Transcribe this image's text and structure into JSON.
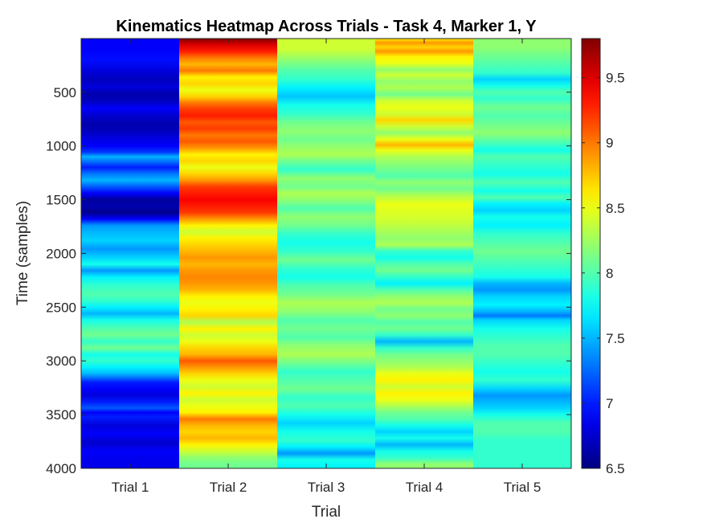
{
  "chart_data": {
    "type": "heatmap",
    "title": "Kinematics Heatmap Across Trials - Task 4, Marker 1, Y",
    "xlabel": "Trial",
    "ylabel": "Time (samples)",
    "categories": [
      "Trial 1",
      "Trial 2",
      "Trial 3",
      "Trial 4",
      "Trial 5"
    ],
    "ylim": [
      1,
      4000
    ],
    "y_reversed": true,
    "yticks": [
      500,
      1000,
      1500,
      2000,
      2500,
      3000,
      3500,
      4000
    ],
    "colorbar": {
      "colormap": "jet",
      "clim": [
        6.5,
        9.8
      ],
      "ticks": [
        6.5,
        7,
        7.5,
        8,
        8.5,
        9,
        9.5
      ]
    },
    "grid": false,
    "series": [
      {
        "values": [
          [
            0,
            6.9
          ],
          [
            100,
            6.9
          ],
          [
            200,
            6.95
          ],
          [
            300,
            6.8
          ],
          [
            380,
            6.7
          ],
          [
            450,
            6.8
          ],
          [
            520,
            6.65
          ],
          [
            580,
            6.7
          ],
          [
            650,
            6.9
          ],
          [
            720,
            6.75
          ],
          [
            800,
            6.65
          ],
          [
            860,
            6.7
          ],
          [
            920,
            6.8
          ],
          [
            1000,
            6.9
          ],
          [
            1060,
            7.1
          ],
          [
            1100,
            7.5
          ],
          [
            1140,
            7.3
          ],
          [
            1200,
            7.0
          ],
          [
            1260,
            7.3
          ],
          [
            1320,
            7.5
          ],
          [
            1380,
            7.2
          ],
          [
            1440,
            6.9
          ],
          [
            1500,
            6.6
          ],
          [
            1560,
            6.65
          ],
          [
            1620,
            6.55
          ],
          [
            1680,
            6.9
          ],
          [
            1740,
            7.4
          ],
          [
            1800,
            7.5
          ],
          [
            1880,
            7.6
          ],
          [
            1960,
            7.4
          ],
          [
            2040,
            7.6
          ],
          [
            2100,
            7.8
          ],
          [
            2160,
            7.4
          ],
          [
            2220,
            7.7
          ],
          [
            2300,
            7.9
          ],
          [
            2380,
            8.0
          ],
          [
            2440,
            7.9
          ],
          [
            2500,
            7.7
          ],
          [
            2560,
            7.5
          ],
          [
            2620,
            7.8
          ],
          [
            2700,
            8.0
          ],
          [
            2760,
            8.1
          ],
          [
            2820,
            7.9
          ],
          [
            2880,
            8.1
          ],
          [
            2940,
            7.8
          ],
          [
            3000,
            7.9
          ],
          [
            3060,
            7.7
          ],
          [
            3120,
            7.5
          ],
          [
            3200,
            7.0
          ],
          [
            3260,
            6.9
          ],
          [
            3320,
            6.8
          ],
          [
            3380,
            7.0
          ],
          [
            3440,
            7.2
          ],
          [
            3480,
            6.9
          ],
          [
            3520,
            7.0
          ],
          [
            3600,
            6.8
          ],
          [
            3680,
            6.9
          ],
          [
            3760,
            6.75
          ],
          [
            3840,
            6.9
          ],
          [
            3920,
            6.85
          ],
          [
            4000,
            6.85
          ]
        ]
      },
      {
        "values": [
          [
            0,
            9.8
          ],
          [
            60,
            9.5
          ],
          [
            120,
            9.3
          ],
          [
            180,
            9.0
          ],
          [
            240,
            8.8
          ],
          [
            300,
            9.0
          ],
          [
            360,
            8.6
          ],
          [
            420,
            8.7
          ],
          [
            480,
            8.5
          ],
          [
            540,
            8.7
          ],
          [
            600,
            9.0
          ],
          [
            660,
            9.2
          ],
          [
            720,
            9.3
          ],
          [
            780,
            9.1
          ],
          [
            840,
            9.2
          ],
          [
            900,
            9.0
          ],
          [
            960,
            9.1
          ],
          [
            1020,
            8.9
          ],
          [
            1080,
            8.6
          ],
          [
            1140,
            8.7
          ],
          [
            1200,
            8.5
          ],
          [
            1260,
            8.7
          ],
          [
            1320,
            8.9
          ],
          [
            1380,
            9.2
          ],
          [
            1440,
            9.3
          ],
          [
            1500,
            9.4
          ],
          [
            1560,
            9.3
          ],
          [
            1620,
            9.2
          ],
          [
            1680,
            8.9
          ],
          [
            1740,
            8.6
          ],
          [
            1800,
            8.4
          ],
          [
            1860,
            8.6
          ],
          [
            1920,
            8.7
          ],
          [
            1980,
            8.8
          ],
          [
            2040,
            8.9
          ],
          [
            2100,
            8.8
          ],
          [
            2160,
            8.9
          ],
          [
            2220,
            8.95
          ],
          [
            2280,
            8.9
          ],
          [
            2340,
            8.8
          ],
          [
            2400,
            8.6
          ],
          [
            2460,
            8.5
          ],
          [
            2520,
            8.6
          ],
          [
            2580,
            8.7
          ],
          [
            2640,
            8.3
          ],
          [
            2700,
            8.6
          ],
          [
            2760,
            8.4
          ],
          [
            2820,
            8.5
          ],
          [
            2880,
            8.7
          ],
          [
            2940,
            8.8
          ],
          [
            3000,
            9.1
          ],
          [
            3060,
            8.9
          ],
          [
            3120,
            8.7
          ],
          [
            3180,
            8.5
          ],
          [
            3240,
            8.4
          ],
          [
            3300,
            8.6
          ],
          [
            3360,
            8.4
          ],
          [
            3420,
            8.5
          ],
          [
            3480,
            8.6
          ],
          [
            3540,
            9.0
          ],
          [
            3600,
            8.8
          ],
          [
            3660,
            8.7
          ],
          [
            3720,
            8.8
          ],
          [
            3780,
            8.6
          ],
          [
            3840,
            8.4
          ],
          [
            3900,
            8.2
          ],
          [
            3960,
            8.1
          ],
          [
            4000,
            8.1
          ]
        ]
      },
      {
        "values": [
          [
            0,
            8.4
          ],
          [
            100,
            8.4
          ],
          [
            200,
            8.2
          ],
          [
            300,
            8.0
          ],
          [
            380,
            7.9
          ],
          [
            460,
            7.7
          ],
          [
            540,
            7.55
          ],
          [
            620,
            7.8
          ],
          [
            700,
            7.9
          ],
          [
            780,
            8.1
          ],
          [
            860,
            8.2
          ],
          [
            940,
            8.1
          ],
          [
            1000,
            8.2
          ],
          [
            1080,
            8.3
          ],
          [
            1140,
            8.1
          ],
          [
            1220,
            7.9
          ],
          [
            1300,
            8.2
          ],
          [
            1380,
            8.1
          ],
          [
            1440,
            8.3
          ],
          [
            1500,
            8.2
          ],
          [
            1580,
            8.0
          ],
          [
            1660,
            8.2
          ],
          [
            1740,
            8.1
          ],
          [
            1820,
            7.9
          ],
          [
            1900,
            7.8
          ],
          [
            1980,
            7.9
          ],
          [
            2060,
            8.1
          ],
          [
            2140,
            7.9
          ],
          [
            2220,
            7.8
          ],
          [
            2300,
            8.0
          ],
          [
            2380,
            8.1
          ],
          [
            2460,
            8.3
          ],
          [
            2540,
            8.2
          ],
          [
            2620,
            8.0
          ],
          [
            2700,
            8.1
          ],
          [
            2780,
            8.0
          ],
          [
            2860,
            8.2
          ],
          [
            2940,
            8.3
          ],
          [
            3020,
            8.1
          ],
          [
            3100,
            7.9
          ],
          [
            3180,
            8.0
          ],
          [
            3260,
            8.1
          ],
          [
            3340,
            7.9
          ],
          [
            3420,
            8.0
          ],
          [
            3500,
            7.8
          ],
          [
            3580,
            7.6
          ],
          [
            3660,
            7.8
          ],
          [
            3740,
            7.9
          ],
          [
            3800,
            7.7
          ],
          [
            3860,
            7.4
          ],
          [
            3920,
            7.8
          ],
          [
            4000,
            7.7
          ]
        ]
      },
      {
        "values": [
          [
            0,
            8.6
          ],
          [
            40,
            8.9
          ],
          [
            80,
            8.7
          ],
          [
            120,
            8.9
          ],
          [
            170,
            8.6
          ],
          [
            230,
            8.5
          ],
          [
            290,
            8.2
          ],
          [
            340,
            8.4
          ],
          [
            400,
            8.2
          ],
          [
            460,
            8.3
          ],
          [
            520,
            8.1
          ],
          [
            580,
            8.4
          ],
          [
            640,
            8.5
          ],
          [
            700,
            8.4
          ],
          [
            760,
            8.7
          ],
          [
            820,
            8.4
          ],
          [
            880,
            8.2
          ],
          [
            940,
            8.5
          ],
          [
            990,
            8.8
          ],
          [
            1040,
            8.5
          ],
          [
            1100,
            8.3
          ],
          [
            1160,
            8.2
          ],
          [
            1220,
            8.1
          ],
          [
            1280,
            8.0
          ],
          [
            1340,
            8.2
          ],
          [
            1400,
            8.1
          ],
          [
            1460,
            8.3
          ],
          [
            1540,
            8.5
          ],
          [
            1620,
            8.45
          ],
          [
            1700,
            8.4
          ],
          [
            1780,
            8.3
          ],
          [
            1860,
            8.2
          ],
          [
            1920,
            8.3
          ],
          [
            1980,
            7.9
          ],
          [
            2040,
            7.8
          ],
          [
            2100,
            8.0
          ],
          [
            2160,
            8.1
          ],
          [
            2220,
            7.9
          ],
          [
            2280,
            7.7
          ],
          [
            2340,
            8.0
          ],
          [
            2400,
            8.2
          ],
          [
            2460,
            8.3
          ],
          [
            2520,
            8.1
          ],
          [
            2580,
            8.2
          ],
          [
            2640,
            8.0
          ],
          [
            2700,
            8.1
          ],
          [
            2760,
            7.9
          ],
          [
            2820,
            7.5
          ],
          [
            2880,
            7.9
          ],
          [
            2940,
            8.1
          ],
          [
            3000,
            8.2
          ],
          [
            3060,
            8.3
          ],
          [
            3120,
            8.5
          ],
          [
            3180,
            8.6
          ],
          [
            3240,
            8.4
          ],
          [
            3300,
            8.6
          ],
          [
            3360,
            8.5
          ],
          [
            3420,
            8.3
          ],
          [
            3480,
            8.1
          ],
          [
            3540,
            8.0
          ],
          [
            3600,
            7.8
          ],
          [
            3660,
            7.6
          ],
          [
            3720,
            7.8
          ],
          [
            3780,
            7.5
          ],
          [
            3840,
            7.8
          ],
          [
            3900,
            7.9
          ],
          [
            3960,
            8.2
          ],
          [
            4000,
            8.2
          ]
        ]
      },
      {
        "values": [
          [
            0,
            8.2
          ],
          [
            80,
            8.2
          ],
          [
            160,
            8.1
          ],
          [
            240,
            8.0
          ],
          [
            320,
            7.9
          ],
          [
            380,
            7.6
          ],
          [
            440,
            7.8
          ],
          [
            500,
            8.0
          ],
          [
            560,
            7.9
          ],
          [
            640,
            8.1
          ],
          [
            720,
            8.0
          ],
          [
            800,
            8.1
          ],
          [
            880,
            8.2
          ],
          [
            960,
            8.0
          ],
          [
            1040,
            7.8
          ],
          [
            1100,
            8.0
          ],
          [
            1180,
            7.9
          ],
          [
            1260,
            7.8
          ],
          [
            1340,
            8.0
          ],
          [
            1420,
            7.8
          ],
          [
            1480,
            8.0
          ],
          [
            1540,
            7.7
          ],
          [
            1600,
            7.6
          ],
          [
            1660,
            7.8
          ],
          [
            1740,
            7.7
          ],
          [
            1820,
            7.9
          ],
          [
            1900,
            8.0
          ],
          [
            1980,
            8.1
          ],
          [
            2060,
            8.0
          ],
          [
            2140,
            7.9
          ],
          [
            2220,
            7.8
          ],
          [
            2280,
            7.5
          ],
          [
            2340,
            7.4
          ],
          [
            2400,
            7.6
          ],
          [
            2480,
            7.7
          ],
          [
            2540,
            7.5
          ],
          [
            2580,
            7.3
          ],
          [
            2620,
            7.6
          ],
          [
            2700,
            7.8
          ],
          [
            2780,
            7.9
          ],
          [
            2860,
            8.0
          ],
          [
            2940,
            8.0
          ],
          [
            3020,
            7.9
          ],
          [
            3100,
            7.8
          ],
          [
            3180,
            7.9
          ],
          [
            3260,
            7.6
          ],
          [
            3320,
            7.4
          ],
          [
            3380,
            7.5
          ],
          [
            3440,
            7.6
          ],
          [
            3500,
            7.8
          ],
          [
            3580,
            8.0
          ],
          [
            3660,
            8.0
          ],
          [
            3740,
            7.9
          ],
          [
            3820,
            7.9
          ],
          [
            3900,
            7.9
          ],
          [
            4000,
            7.9
          ]
        ]
      }
    ]
  }
}
